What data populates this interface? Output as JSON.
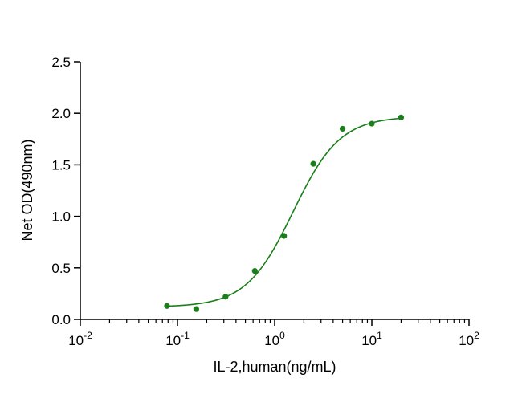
{
  "chart_data": {
    "type": "scatter",
    "title": "",
    "xlabel": "IL-2,human(ng/mL)",
    "ylabel": "Net OD(490nm)",
    "x_scale": "log",
    "xlim": [
      0.01,
      100
    ],
    "ylim": [
      0,
      2.5
    ],
    "x_ticks": [
      {
        "base": "10",
        "exp": "-2",
        "value": 0.01
      },
      {
        "base": "10",
        "exp": "-1",
        "value": 0.1
      },
      {
        "base": "10",
        "exp": "0",
        "value": 1
      },
      {
        "base": "10",
        "exp": "1",
        "value": 10
      },
      {
        "base": "10",
        "exp": "2",
        "value": 100
      }
    ],
    "y_ticks": [
      {
        "label": "0.0",
        "value": 0.0
      },
      {
        "label": "0.5",
        "value": 0.5
      },
      {
        "label": "1.0",
        "value": 1.0
      },
      {
        "label": "1.5",
        "value": 1.5
      },
      {
        "label": "2.0",
        "value": 2.0
      },
      {
        "label": "2.5",
        "value": 2.5
      }
    ],
    "grid": false,
    "legend": "none",
    "series": [
      {
        "color": "#1a7f1a",
        "points": [
          {
            "x": 0.078,
            "y": 0.13
          },
          {
            "x": 0.156,
            "y": 0.1
          },
          {
            "x": 0.3125,
            "y": 0.22
          },
          {
            "x": 0.625,
            "y": 0.47
          },
          {
            "x": 1.25,
            "y": 0.81
          },
          {
            "x": 2.5,
            "y": 1.51
          },
          {
            "x": 5,
            "y": 1.85
          },
          {
            "x": 10,
            "y": 1.9
          },
          {
            "x": 20,
            "y": 1.96
          }
        ],
        "fit": {
          "model": "4PL",
          "bottom": 0.12,
          "top": 1.97,
          "ec50": 1.55,
          "hill": 1.8,
          "x_range": [
            0.078,
            20
          ]
        }
      }
    ]
  }
}
